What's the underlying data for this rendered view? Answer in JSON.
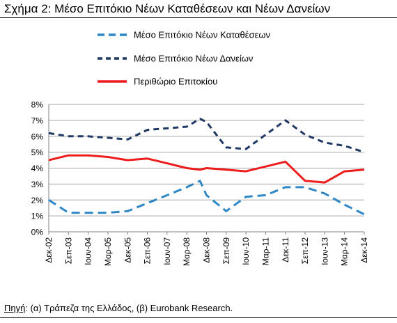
{
  "figure": {
    "title": "Σχήμα 2: Μέσο Επιτόκιο Νέων Καταθέσεων και Νέων Δανείων",
    "source_label": "Πηγή",
    "source_text": ": (α) Τράπεζα της Ελλάδος, (β) Eurobank Research."
  },
  "chart_data": {
    "type": "line",
    "ylim": [
      0,
      8
    ],
    "y_ticks": [
      "0%",
      "1%",
      "2%",
      "3%",
      "4%",
      "5%",
      "6%",
      "7%",
      "8%"
    ],
    "x_tick_labels": [
      "Δεκ-02",
      "Σεπ-03",
      "Ιουν-04",
      "Μαρ-05",
      "Δεκ-05",
      "Σεπ-06",
      "Ιουν-07",
      "Μαρ-08",
      "Δεκ-08",
      "Σεπ-09",
      "Ιουν-10",
      "Μαρ-11",
      "Δεκ-11",
      "Σεπ-12",
      "Ιουν-13",
      "Μαρ-14",
      "Δεκ-14"
    ],
    "grid": true,
    "legend_position": "top",
    "series": [
      {
        "name": "Μέσο Επιτόκιο Νέων Καταθέσεων",
        "color": "#2e88c8",
        "style": "dashed",
        "values": [
          {
            "x": "Δεκ-02",
            "y": 2.0
          },
          {
            "x": "Σεπ-03",
            "y": 1.2
          },
          {
            "x": "Ιουν-04",
            "y": 1.2
          },
          {
            "x": "Μαρ-05",
            "y": 1.2
          },
          {
            "x": "Δεκ-05",
            "y": 1.3
          },
          {
            "x": "Σεπ-06",
            "y": 1.8
          },
          {
            "x": "Ιουν-07",
            "y": 2.3
          },
          {
            "x": "Μαρ-08",
            "y": 2.8
          },
          {
            "x": "Σεπ-08",
            "y": 3.2
          },
          {
            "x": "Δεκ-08",
            "y": 2.3
          },
          {
            "x": "Σεπ-09",
            "y": 1.3
          },
          {
            "x": "Ιουν-10",
            "y": 2.2
          },
          {
            "x": "Μαρ-11",
            "y": 2.3
          },
          {
            "x": "Δεκ-11",
            "y": 2.8
          },
          {
            "x": "Σεπ-12",
            "y": 2.8
          },
          {
            "x": "Ιουν-13",
            "y": 2.4
          },
          {
            "x": "Μαρ-14",
            "y": 1.7
          },
          {
            "x": "Δεκ-14",
            "y": 1.1
          }
        ]
      },
      {
        "name": "Μέσο Επιτόκιο Νέων Δανείων",
        "color": "#1f3864",
        "style": "dashed",
        "values": [
          {
            "x": "Δεκ-02",
            "y": 6.2
          },
          {
            "x": "Σεπ-03",
            "y": 6.0
          },
          {
            "x": "Ιουν-04",
            "y": 6.0
          },
          {
            "x": "Μαρ-05",
            "y": 5.9
          },
          {
            "x": "Δεκ-05",
            "y": 5.8
          },
          {
            "x": "Σεπ-06",
            "y": 6.4
          },
          {
            "x": "Ιουν-07",
            "y": 6.5
          },
          {
            "x": "Μαρ-08",
            "y": 6.6
          },
          {
            "x": "Σεπ-08",
            "y": 7.1
          },
          {
            "x": "Δεκ-08",
            "y": 6.9
          },
          {
            "x": "Σεπ-09",
            "y": 5.3
          },
          {
            "x": "Ιουν-10",
            "y": 5.2
          },
          {
            "x": "Μαρ-11",
            "y": 6.1
          },
          {
            "x": "Δεκ-11",
            "y": 7.0
          },
          {
            "x": "Σεπ-12",
            "y": 6.1
          },
          {
            "x": "Ιουν-13",
            "y": 5.6
          },
          {
            "x": "Μαρ-14",
            "y": 5.4
          },
          {
            "x": "Δεκ-14",
            "y": 5.0
          }
        ]
      },
      {
        "name": "Περιθώριο Επιτοκίου",
        "color": "#ee1c1c",
        "style": "solid",
        "values": [
          {
            "x": "Δεκ-02",
            "y": 4.5
          },
          {
            "x": "Σεπ-03",
            "y": 4.8
          },
          {
            "x": "Ιουν-04",
            "y": 4.8
          },
          {
            "x": "Μαρ-05",
            "y": 4.7
          },
          {
            "x": "Δεκ-05",
            "y": 4.5
          },
          {
            "x": "Σεπ-06",
            "y": 4.6
          },
          {
            "x": "Ιουν-07",
            "y": 4.3
          },
          {
            "x": "Μαρ-08",
            "y": 4.0
          },
          {
            "x": "Σεπ-08",
            "y": 3.9
          },
          {
            "x": "Δεκ-08",
            "y": 4.0
          },
          {
            "x": "Σεπ-09",
            "y": 3.9
          },
          {
            "x": "Ιουν-10",
            "y": 3.8
          },
          {
            "x": "Μαρ-11",
            "y": 4.1
          },
          {
            "x": "Δεκ-11",
            "y": 4.4
          },
          {
            "x": "Σεπ-12",
            "y": 3.2
          },
          {
            "x": "Ιουν-13",
            "y": 3.1
          },
          {
            "x": "Μαρ-14",
            "y": 3.8
          },
          {
            "x": "Δεκ-14",
            "y": 3.9
          }
        ]
      }
    ]
  }
}
